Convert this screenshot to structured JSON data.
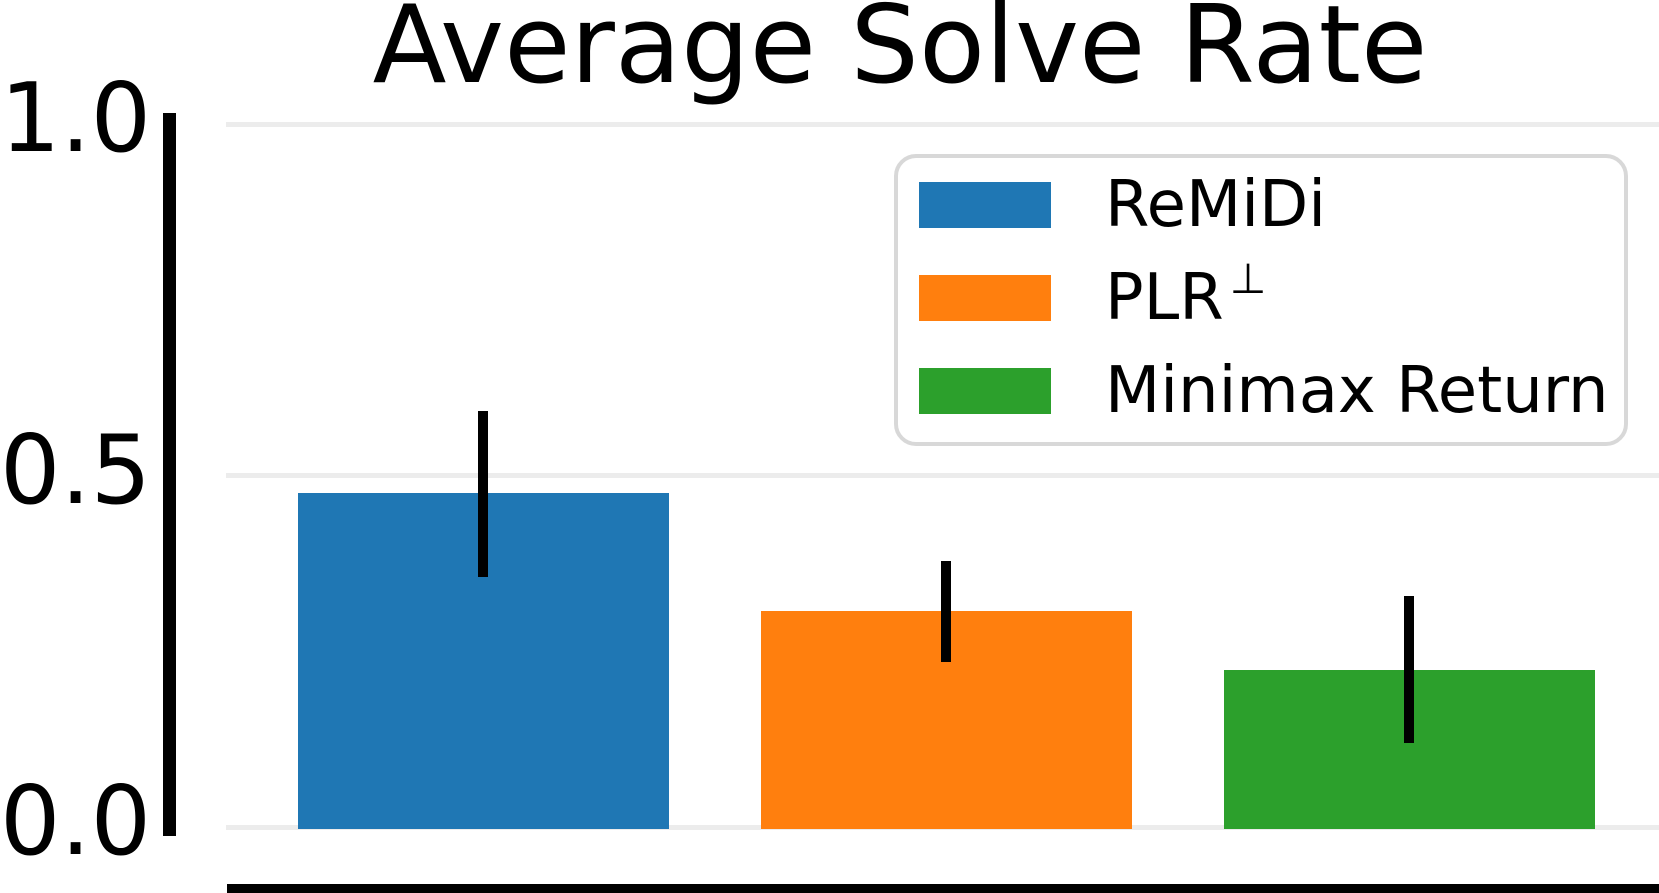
{
  "chart_data": {
    "type": "bar",
    "title": "Average Solve Rate",
    "xlabel": "",
    "ylabel": "",
    "ylim": [
      0.0,
      1.0
    ],
    "yticks": [
      0.0,
      0.5,
      1.0
    ],
    "ytick_labels": [
      "0.0",
      "0.5",
      "1.0"
    ],
    "grid": "horizontal",
    "legend_position": "upper right",
    "series": [
      {
        "slug": "remidi",
        "label": "ReMiDi",
        "label_sup": "",
        "value": 0.475,
        "err_low": 0.356,
        "err_high": 0.592,
        "color": "#1f77b4"
      },
      {
        "slug": "plr-perp",
        "label": "PLR",
        "label_sup": "⊥",
        "value": 0.307,
        "err_low": 0.235,
        "err_high": 0.378,
        "color": "#ff7f0e"
      },
      {
        "slug": "minimax-return",
        "label": "Minimax Return",
        "label_sup": "",
        "value": 0.224,
        "err_low": 0.119,
        "err_high": 0.329,
        "color": "#2ca02c"
      }
    ]
  },
  "colors": {
    "axis": "#000000",
    "grid": "#ececec",
    "legend_border": "#d8d8d8",
    "background": "#ffffff"
  }
}
